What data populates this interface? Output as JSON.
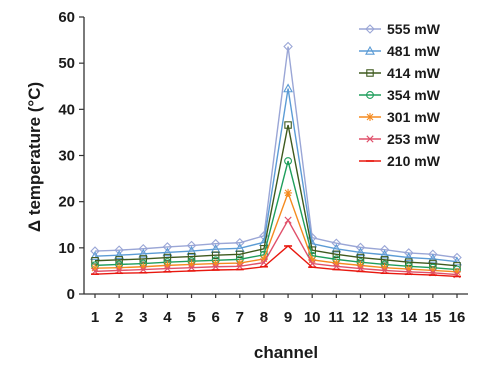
{
  "chart_data": {
    "type": "line",
    "xlabel": "channel",
    "ylabel": "Δ temperature (°C)",
    "x": [
      1,
      2,
      3,
      4,
      5,
      6,
      7,
      8,
      9,
      10,
      11,
      12,
      13,
      14,
      15,
      16
    ],
    "ylim": [
      0,
      60
    ],
    "yticks": [
      0,
      10,
      20,
      30,
      40,
      50,
      60
    ],
    "grid": false,
    "legend_position": "top-right",
    "series": [
      {
        "name": "555 mW",
        "color": "#9aa6d6",
        "marker": "diamond",
        "values": [
          9.3,
          9.5,
          9.8,
          10.2,
          10.5,
          10.9,
          11.1,
          12.6,
          53.6,
          12.2,
          11.0,
          10.1,
          9.6,
          8.9,
          8.6,
          7.9
        ]
      },
      {
        "name": "481 mW",
        "color": "#5b9bd5",
        "marker": "triangle",
        "values": [
          8.2,
          8.4,
          8.7,
          9.0,
          9.3,
          9.7,
          9.9,
          11.2,
          44.5,
          10.9,
          9.8,
          9.0,
          8.5,
          7.9,
          7.6,
          7.0
        ]
      },
      {
        "name": "414 mW",
        "color": "#3e5a1e",
        "marker": "square",
        "values": [
          7.2,
          7.4,
          7.6,
          7.9,
          8.1,
          8.4,
          8.6,
          9.8,
          36.6,
          9.5,
          8.6,
          7.9,
          7.4,
          6.9,
          6.6,
          6.1
        ]
      },
      {
        "name": "354 mW",
        "color": "#1e9e5c",
        "marker": "circle",
        "values": [
          6.2,
          6.4,
          6.6,
          6.9,
          7.1,
          7.3,
          7.5,
          8.5,
          28.8,
          8.3,
          7.5,
          6.9,
          6.4,
          6.0,
          5.7,
          5.3
        ]
      },
      {
        "name": "301 mW",
        "color": "#f58a1f",
        "marker": "star",
        "values": [
          5.6,
          5.7,
          5.9,
          6.2,
          6.4,
          6.6,
          6.7,
          7.6,
          21.9,
          7.4,
          6.7,
          6.2,
          5.7,
          5.4,
          5.1,
          4.8
        ]
      },
      {
        "name": "253 mW",
        "color": "#e0506a",
        "marker": "x",
        "values": [
          4.9,
          5.1,
          5.3,
          5.5,
          5.7,
          5.9,
          6.0,
          6.8,
          16.0,
          6.6,
          6.0,
          5.5,
          5.1,
          4.8,
          4.6,
          4.2
        ]
      },
      {
        "name": "210 mW",
        "color": "#e8180f",
        "marker": "dash",
        "values": [
          4.3,
          4.5,
          4.6,
          4.8,
          5.0,
          5.2,
          5.3,
          5.9,
          10.4,
          5.8,
          5.3,
          4.9,
          4.5,
          4.3,
          4.1,
          3.8
        ]
      }
    ]
  }
}
